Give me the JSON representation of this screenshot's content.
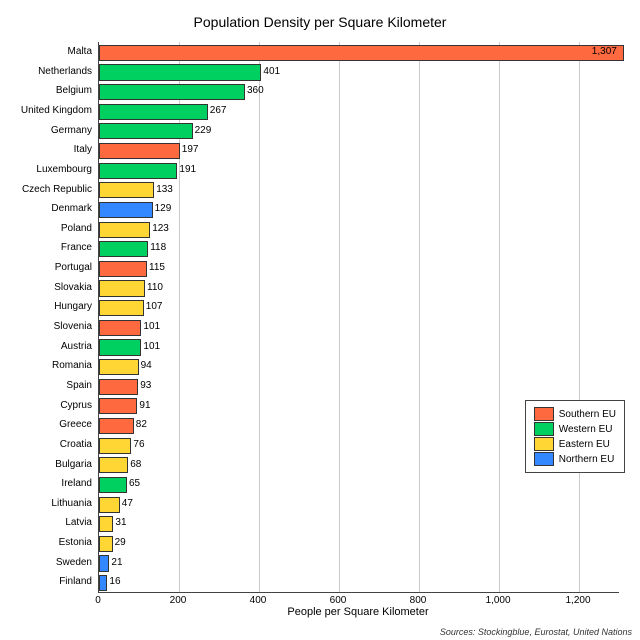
{
  "chart": {
    "type": "bar_horizontal",
    "title": "Population Density per Square Kilometer",
    "title_fontsize": 14,
    "xlabel": "People per Square Kilometer",
    "label_fontsize": 11,
    "tick_fontsize": 10,
    "background_color": "#ffffff",
    "grid_color": "#cccccc",
    "axis_color": "#444444",
    "bar_border": "#333333",
    "xlim": [
      0,
      1300
    ],
    "xticks": [
      0,
      200,
      400,
      600,
      800,
      1000,
      1200
    ],
    "xtick_labels": [
      "0",
      "200",
      "400",
      "600",
      "800",
      "1,000",
      "1,200"
    ],
    "colors": {
      "southern": "#ff6940",
      "western": "#00d060",
      "eastern": "#ffd633",
      "northern": "#3388ff"
    },
    "legend": {
      "position": "right",
      "items": [
        {
          "label": "Southern EU",
          "color": "#ff6940"
        },
        {
          "label": "Western EU",
          "color": "#00d060"
        },
        {
          "label": "Eastern EU",
          "color": "#ffd633"
        },
        {
          "label": "Northern EU",
          "color": "#3388ff"
        }
      ]
    },
    "bars": [
      {
        "country": "Malta",
        "value": 1307,
        "value_fmt": "1,307",
        "group": "southern"
      },
      {
        "country": "Netherlands",
        "value": 401,
        "value_fmt": "401",
        "group": "western"
      },
      {
        "country": "Belgium",
        "value": 360,
        "value_fmt": "360",
        "group": "western"
      },
      {
        "country": "United Kingdom",
        "value": 267,
        "value_fmt": "267",
        "group": "western"
      },
      {
        "country": "Germany",
        "value": 229,
        "value_fmt": "229",
        "group": "western"
      },
      {
        "country": "Italy",
        "value": 197,
        "value_fmt": "197",
        "group": "southern"
      },
      {
        "country": "Luxembourg",
        "value": 191,
        "value_fmt": "191",
        "group": "western"
      },
      {
        "country": "Czech Republic",
        "value": 133,
        "value_fmt": "133",
        "group": "eastern"
      },
      {
        "country": "Denmark",
        "value": 129,
        "value_fmt": "129",
        "group": "northern"
      },
      {
        "country": "Poland",
        "value": 123,
        "value_fmt": "123",
        "group": "eastern"
      },
      {
        "country": "France",
        "value": 118,
        "value_fmt": "118",
        "group": "western"
      },
      {
        "country": "Portugal",
        "value": 115,
        "value_fmt": "115",
        "group": "southern"
      },
      {
        "country": "Slovakia",
        "value": 110,
        "value_fmt": "110",
        "group": "eastern"
      },
      {
        "country": "Hungary",
        "value": 107,
        "value_fmt": "107",
        "group": "eastern"
      },
      {
        "country": "Slovenia",
        "value": 101,
        "value_fmt": "101",
        "group": "southern"
      },
      {
        "country": "Austria",
        "value": 101,
        "value_fmt": "101",
        "group": "western"
      },
      {
        "country": "Romania",
        "value": 94,
        "value_fmt": "94",
        "group": "eastern"
      },
      {
        "country": "Spain",
        "value": 93,
        "value_fmt": "93",
        "group": "southern"
      },
      {
        "country": "Cyprus",
        "value": 91,
        "value_fmt": "91",
        "group": "southern"
      },
      {
        "country": "Greece",
        "value": 82,
        "value_fmt": "82",
        "group": "southern"
      },
      {
        "country": "Croatia",
        "value": 76,
        "value_fmt": "76",
        "group": "eastern"
      },
      {
        "country": "Bulgaria",
        "value": 68,
        "value_fmt": "68",
        "group": "eastern"
      },
      {
        "country": "Ireland",
        "value": 65,
        "value_fmt": "65",
        "group": "western"
      },
      {
        "country": "Lithuania",
        "value": 47,
        "value_fmt": "47",
        "group": "eastern"
      },
      {
        "country": "Latvia",
        "value": 31,
        "value_fmt": "31",
        "group": "eastern"
      },
      {
        "country": "Estonia",
        "value": 29,
        "value_fmt": "29",
        "group": "eastern"
      },
      {
        "country": "Sweden",
        "value": 21,
        "value_fmt": "21",
        "group": "northern"
      },
      {
        "country": "Finland",
        "value": 16,
        "value_fmt": "16",
        "group": "northern"
      }
    ],
    "sources": "Sources: Stockingblue, Eurostat, United Nations"
  }
}
